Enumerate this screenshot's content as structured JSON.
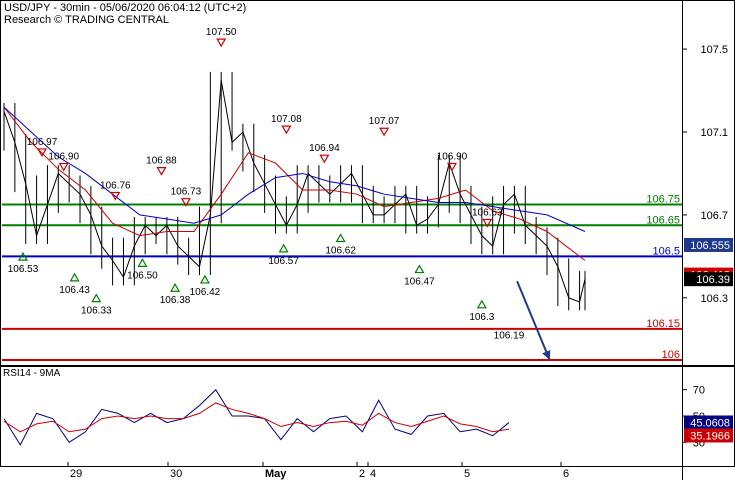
{
  "header": {
    "title": "USD/JPY - 30min - 05/06/2020 06:04:12 (UTC+2)",
    "source": "Research © TRADING CENTRAL"
  },
  "rsi_panel": {
    "title": "RSI14 - 9MA"
  },
  "chart_data": [
    {
      "type": "line",
      "name": "price",
      "x_axis": {
        "ticks": [
          "29",
          "30",
          "May",
          "2",
          "4",
          "5",
          "6"
        ],
        "range": [
          0,
          214
        ]
      },
      "y_axis": {
        "ticks": [
          106.3,
          106.7,
          107.1,
          107.5
        ],
        "ylim": [
          106.0,
          107.65
        ],
        "side": "right"
      },
      "grid": false,
      "series": [
        {
          "style": "bars",
          "x": [
            0,
            4,
            8,
            12,
            16,
            20,
            24,
            28,
            32,
            36,
            40,
            44,
            48,
            52,
            56,
            60,
            64,
            68,
            72,
            76,
            80,
            84,
            88,
            92,
            96,
            100,
            104,
            108,
            112,
            116,
            120,
            124,
            128,
            132,
            136,
            140,
            144,
            148,
            152,
            156,
            160,
            164,
            168,
            172,
            176,
            180,
            184,
            188,
            192,
            196,
            200,
            204,
            208,
            212,
            214
          ],
          "values": [
            107.2,
            107.05,
            106.85,
            106.6,
            106.75,
            106.9,
            106.85,
            106.8,
            106.7,
            106.55,
            106.48,
            106.4,
            106.55,
            106.65,
            106.6,
            106.65,
            106.55,
            106.5,
            106.45,
            106.7,
            107.35,
            107.05,
            107.1,
            106.95,
            106.85,
            106.75,
            106.65,
            106.75,
            106.9,
            106.85,
            106.8,
            106.85,
            106.9,
            106.8,
            106.7,
            106.7,
            106.75,
            106.8,
            106.65,
            106.68,
            106.75,
            106.95,
            106.8,
            106.7,
            106.6,
            106.55,
            106.75,
            106.8,
            106.65,
            106.6,
            106.55,
            106.45,
            106.3,
            106.28,
            106.39
          ]
        },
        {
          "name": "MA-fast",
          "color": "#cc0000",
          "x": [
            0,
            10,
            20,
            30,
            40,
            50,
            60,
            70,
            80,
            90,
            100,
            110,
            120,
            130,
            140,
            150,
            160,
            170,
            180,
            190,
            200,
            214
          ],
          "values": [
            107.22,
            107.05,
            106.92,
            106.82,
            106.66,
            106.6,
            106.62,
            106.62,
            106.8,
            107.0,
            106.95,
            106.82,
            106.82,
            106.8,
            106.74,
            106.76,
            106.78,
            106.82,
            106.72,
            106.68,
            106.62,
            106.48
          ]
        },
        {
          "name": "MA-slow",
          "color": "#0000cc",
          "x": [
            0,
            10,
            20,
            30,
            40,
            50,
            60,
            70,
            80,
            90,
            100,
            110,
            120,
            130,
            140,
            150,
            160,
            170,
            180,
            190,
            200,
            214
          ],
          "values": [
            107.22,
            107.1,
            106.98,
            106.9,
            106.8,
            106.7,
            106.68,
            106.66,
            106.7,
            106.8,
            106.88,
            106.9,
            106.86,
            106.84,
            106.8,
            106.78,
            106.76,
            106.76,
            106.74,
            106.72,
            106.7,
            106.62
          ]
        }
      ],
      "levels": [
        {
          "value": 106.75,
          "label": "106.75",
          "color": "#008000"
        },
        {
          "value": 106.65,
          "label": "106.65",
          "color": "#008000"
        },
        {
          "value": 106.5,
          "label": "106.5",
          "color": "#0000cc"
        },
        {
          "value": 106.15,
          "label": "106.15",
          "color": "#cc0000"
        },
        {
          "value": 106.0,
          "label": "106",
          "color": "#cc0000"
        }
      ],
      "price_tags": [
        {
          "value": 106.555,
          "label": "106.555",
          "bg": "#1e3a8a"
        },
        {
          "value": 106.412,
          "label": "106.412",
          "bg": "#cc0000"
        },
        {
          "value": 106.39,
          "label": "106.39",
          "bg": "#000000"
        }
      ],
      "annotations": [
        {
          "x": 14,
          "y": 106.97,
          "label": "106.97",
          "kind": "high"
        },
        {
          "x": 22,
          "y": 106.9,
          "label": "106.90",
          "kind": "high"
        },
        {
          "x": 41,
          "y": 106.76,
          "label": "106.76",
          "kind": "high"
        },
        {
          "x": 58,
          "y": 106.88,
          "label": "106.88",
          "kind": "high"
        },
        {
          "x": 67,
          "y": 106.73,
          "label": "106.73",
          "kind": "high"
        },
        {
          "x": 80,
          "y": 107.5,
          "label": "107.50",
          "kind": "high"
        },
        {
          "x": 104,
          "y": 107.08,
          "label": "107.08",
          "kind": "high"
        },
        {
          "x": 118,
          "y": 106.94,
          "label": "106.94",
          "kind": "high"
        },
        {
          "x": 140,
          "y": 107.07,
          "label": "107.07",
          "kind": "high"
        },
        {
          "x": 165,
          "y": 106.9,
          "label": "106.90",
          "kind": "high"
        },
        {
          "x": 178,
          "y": 106.63,
          "label": "106.63",
          "kind": "high"
        },
        {
          "x": 7,
          "y": 106.53,
          "label": "106.53",
          "kind": "low"
        },
        {
          "x": 26,
          "y": 106.43,
          "label": "106.43",
          "kind": "low"
        },
        {
          "x": 34,
          "y": 106.33,
          "label": "106.33",
          "kind": "low"
        },
        {
          "x": 51,
          "y": 106.5,
          "label": "106.50",
          "kind": "low"
        },
        {
          "x": 63,
          "y": 106.38,
          "label": "106.38",
          "kind": "low"
        },
        {
          "x": 74,
          "y": 106.42,
          "label": "106.42",
          "kind": "low"
        },
        {
          "x": 103,
          "y": 106.57,
          "label": "106.57",
          "kind": "low"
        },
        {
          "x": 124,
          "y": 106.62,
          "label": "106.62",
          "kind": "low"
        },
        {
          "x": 153,
          "y": 106.47,
          "label": "106.47",
          "kind": "low"
        },
        {
          "x": 176,
          "y": 106.3,
          "label": "106.3",
          "kind": "low"
        },
        {
          "x": 186,
          "y": 106.19,
          "label": "106.19",
          "kind": "target"
        }
      ],
      "forecast_arrow": {
        "from": [
          189,
          106.38
        ],
        "to": [
          201,
          106.0
        ],
        "color": "#1e3a8a"
      }
    },
    {
      "type": "line",
      "name": "RSI14",
      "y_axis": {
        "ticks": [
          30,
          50,
          70
        ],
        "ylim": [
          15,
          85
        ],
        "side": "right"
      },
      "series": [
        {
          "name": "RSI14",
          "color": "#000080",
          "x": [
            0,
            6,
            12,
            18,
            24,
            30,
            36,
            42,
            48,
            54,
            60,
            66,
            72,
            78,
            84,
            90,
            96,
            102,
            108,
            114,
            120,
            126,
            132,
            138,
            144,
            150,
            156,
            162,
            168,
            174,
            180,
            186
          ],
          "values": [
            48,
            28,
            52,
            48,
            30,
            38,
            55,
            52,
            45,
            52,
            45,
            48,
            58,
            70,
            50,
            50,
            48,
            32,
            48,
            38,
            48,
            50,
            38,
            62,
            40,
            36,
            50,
            52,
            38,
            40,
            35,
            45
          ]
        },
        {
          "name": "9MA",
          "color": "#cc0000",
          "x": [
            0,
            6,
            12,
            18,
            24,
            30,
            36,
            42,
            48,
            54,
            60,
            66,
            72,
            78,
            84,
            90,
            96,
            102,
            108,
            114,
            120,
            126,
            132,
            138,
            144,
            150,
            156,
            162,
            168,
            174,
            180,
            186
          ],
          "values": [
            46,
            38,
            44,
            46,
            38,
            40,
            48,
            50,
            48,
            50,
            48,
            48,
            52,
            60,
            55,
            52,
            48,
            42,
            45,
            42,
            45,
            46,
            43,
            52,
            45,
            42,
            46,
            50,
            44,
            42,
            38,
            40
          ]
        }
      ],
      "tags": [
        {
          "value": 45.0608,
          "label": "45.0608",
          "bg": "#000080"
        },
        {
          "value": 35.1966,
          "label": "35.1966",
          "bg": "#cc0000"
        }
      ]
    }
  ]
}
